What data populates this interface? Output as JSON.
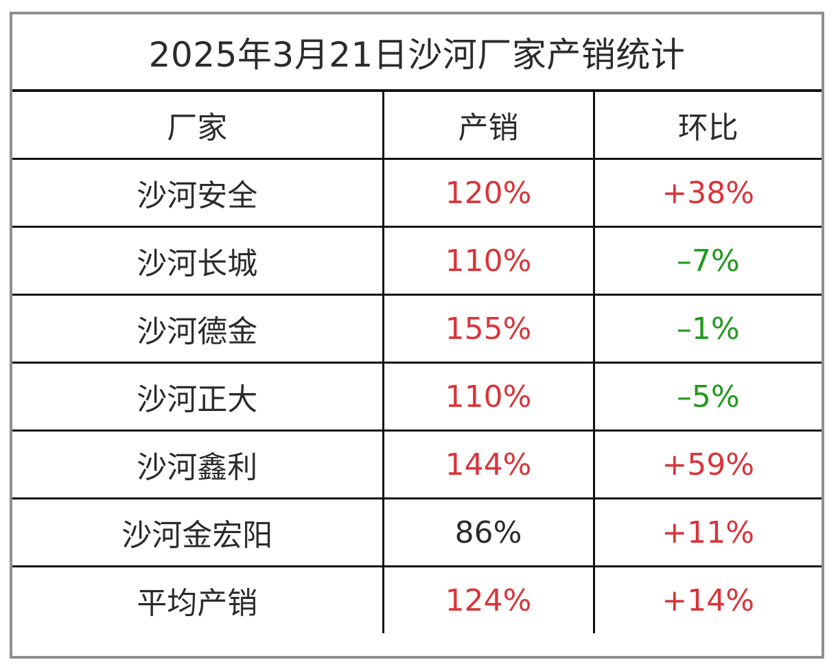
{
  "title": "2025年3月21日沙河厂家产销统计",
  "headers": {
    "factory": "厂家",
    "sales": "产销",
    "change": "环比"
  },
  "rows": [
    {
      "factory": "沙河安全",
      "sales": "120%",
      "change": "+38%",
      "sales_color": "red",
      "change_color": "red"
    },
    {
      "factory": "沙河长城",
      "sales": "110%",
      "change": "–7%",
      "sales_color": "red",
      "change_color": "green"
    },
    {
      "factory": "沙河德金",
      "sales": "155%",
      "change": "–1%",
      "sales_color": "red",
      "change_color": "green"
    },
    {
      "factory": "沙河正大",
      "sales": "110%",
      "change": "–5%",
      "sales_color": "red",
      "change_color": "green"
    },
    {
      "factory": "沙河鑫利",
      "sales": "144%",
      "change": "+59%",
      "sales_color": "red",
      "change_color": "red"
    },
    {
      "factory": "沙河金宏阳",
      "sales": "86%",
      "change": "+11%",
      "sales_color": "dark",
      "change_color": "red"
    },
    {
      "factory": "平均产销",
      "sales": "124%",
      "change": "+14%",
      "sales_color": "red",
      "change_color": "red"
    }
  ],
  "colors": {
    "red": "#d9343a",
    "green": "#1f9a1f",
    "dark": "#2b2b2b",
    "border": "#111111",
    "frame": "#8f8f8f"
  }
}
